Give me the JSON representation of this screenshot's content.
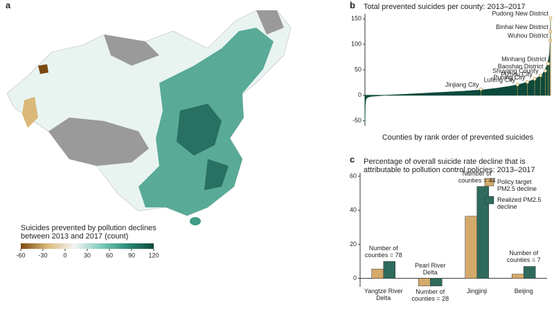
{
  "chart_data": [
    {
      "type": "map",
      "panel": "a",
      "title": "Suicides prevented by pollution declines between 2013 and 2017 (count)",
      "colorbar": {
        "lim": [
          -60,
          120
        ],
        "ticks": [
          -60,
          -30,
          0,
          30,
          60,
          90,
          120
        ],
        "colors": [
          "#7a4a12",
          "#d9b878",
          "#f4f4f2",
          "#7fcbbd",
          "#2b8c79",
          "#0d4a3c"
        ]
      }
    },
    {
      "type": "area",
      "panel": "b",
      "title": "Total prevented suicides per county: 2013–2017",
      "xlabel": "Counties by rank order of prevented suicides",
      "x": [
        1,
        5,
        15,
        40,
        100,
        300,
        600,
        900,
        1200,
        1500,
        1800,
        2000,
        2200,
        2350,
        2450,
        2550,
        2620,
        2680,
        2720,
        2750,
        2770,
        2785,
        2795,
        2800
      ],
      "values": [
        -55,
        -20,
        -8,
        -4,
        -2,
        0,
        2,
        4,
        6,
        8,
        11,
        14,
        18,
        22,
        26,
        31,
        36,
        42,
        50,
        60,
        70,
        82,
        110,
        152
      ],
      "color": "#0d4a3c",
      "marker_color": "#c8a85a",
      "xlim": [
        1,
        2800
      ],
      "ylim": [
        -60,
        160
      ],
      "yticks": [
        -50,
        0,
        50,
        100,
        150
      ],
      "annotations": [
        {
          "label": "Jinjiang City",
          "x": 1750,
          "value": 12
        },
        {
          "label": "Lufeng City",
          "x": 2300,
          "value": 21
        },
        {
          "label": "Puning City",
          "x": 2450,
          "value": 26
        },
        {
          "label": "Pizhou City",
          "x": 2560,
          "value": 32
        },
        {
          "label": "Shuyang County",
          "x": 2650,
          "value": 39
        },
        {
          "label": "Baoshan District",
          "x": 2720,
          "value": 48
        },
        {
          "label": "Minhang District",
          "x": 2765,
          "value": 62
        },
        {
          "label": "Wuhou District",
          "x": 2795,
          "value": 108
        },
        {
          "label": "Binhai New District",
          "x": 2797,
          "value": 125
        },
        {
          "label": "Pudong New District",
          "x": 2800,
          "value": 152
        }
      ]
    },
    {
      "type": "bar",
      "panel": "c",
      "title": "Percentage of overall suicide rate decline that is attributable to pollution control policies: 2013–2017",
      "categories": [
        "Yangtze River Delta",
        "Pearl River Delta",
        "Jingjinji",
        "Beijing"
      ],
      "series": [
        {
          "name": "Policy target PM2.5 decline",
          "color": "#d4aa6a",
          "values": [
            5.5,
            -4.5,
            36.5,
            2.5
          ]
        },
        {
          "name": "Realized PM2.5 decline",
          "color": "#2e6b5c",
          "values": [
            10,
            -4.5,
            54,
            7
          ]
        }
      ],
      "notes": [
        "Number of counties = 78",
        "Number of counties = 28",
        "Number of counties = 44",
        "Number of counties = 7"
      ],
      "ylim": [
        -5,
        62
      ],
      "yticks": [
        0,
        20,
        40,
        60
      ]
    }
  ]
}
